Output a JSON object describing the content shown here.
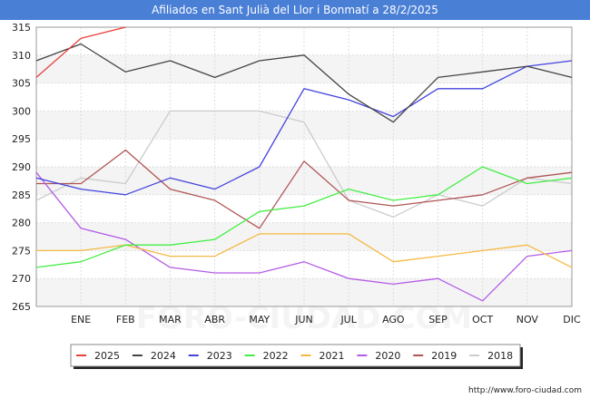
{
  "chart_data": {
    "type": "line",
    "title": "Afiliados en Sant Julià del Llor i Bonmatí a 28/2/2025",
    "categories": [
      "",
      "ENE",
      "FEB",
      "MAR",
      "ABR",
      "MAY",
      "JUN",
      "JUL",
      "AGO",
      "SEP",
      "OCT",
      "NOV",
      "DIC"
    ],
    "ylim": [
      265,
      315
    ],
    "yticks": [
      265,
      270,
      275,
      280,
      285,
      290,
      295,
      300,
      305,
      310,
      315
    ],
    "grid": true,
    "legend_position": "bottom",
    "series": [
      {
        "name": "2025",
        "color": "#e8413d",
        "values": [
          306,
          313,
          315,
          null,
          null,
          null,
          null,
          null,
          null,
          null,
          null,
          null,
          null
        ]
      },
      {
        "name": "2024",
        "color": "#444444",
        "values": [
          309,
          312,
          307,
          309,
          306,
          309,
          310,
          303,
          298,
          306,
          307,
          308,
          306
        ]
      },
      {
        "name": "2023",
        "color": "#4444dd",
        "values": [
          288,
          286,
          285,
          288,
          286,
          290,
          304,
          302,
          299,
          304,
          304,
          308,
          309
        ]
      },
      {
        "name": "2022",
        "color": "#44ee44",
        "values": [
          272,
          273,
          276,
          276,
          277,
          282,
          283,
          286,
          284,
          285,
          290,
          287,
          288
        ]
      },
      {
        "name": "2021",
        "color": "#f5b942",
        "values": [
          275,
          275,
          276,
          274,
          274,
          278,
          278,
          278,
          273,
          274,
          275,
          276,
          272
        ]
      },
      {
        "name": "2020",
        "color": "#b45ce6",
        "values": [
          289,
          279,
          277,
          272,
          271,
          271,
          273,
          270,
          269,
          270,
          266,
          274,
          275
        ]
      },
      {
        "name": "2019",
        "color": "#b05555",
        "values": [
          287,
          287,
          293,
          286,
          284,
          279,
          291,
          284,
          283,
          284,
          285,
          288,
          289
        ]
      },
      {
        "name": "2018",
        "color": "#cccccc",
        "values": [
          284,
          288,
          287,
          300,
          300,
          300,
          298,
          284,
          281,
          285,
          283,
          288,
          287
        ]
      }
    ]
  },
  "footer": {
    "url": "http://www.foro-ciudad.com"
  },
  "watermark": "FORO-CIUDAD.COM"
}
